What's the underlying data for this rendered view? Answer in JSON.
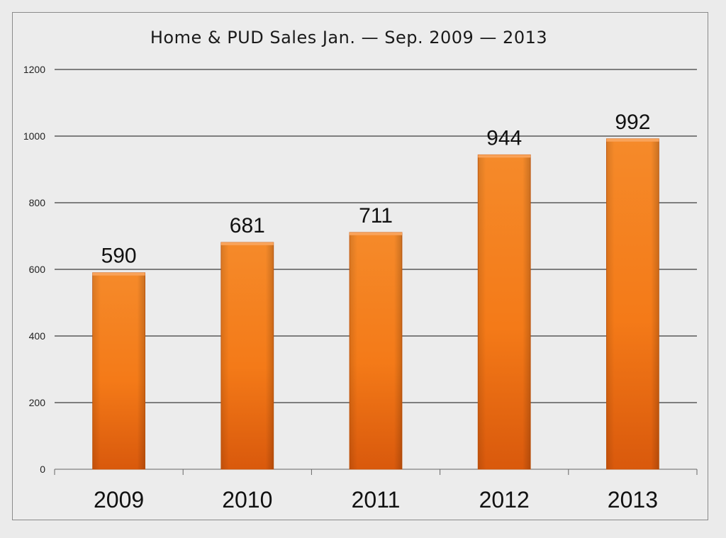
{
  "chart_data": {
    "type": "bar",
    "title": "Home & PUD Sales Jan. — Sep. 2009 — 2013",
    "categories": [
      "2009",
      "2010",
      "2011",
      "2012",
      "2013"
    ],
    "values": [
      590,
      681,
      711,
      944,
      992
    ],
    "data_labels": [
      "590",
      "681",
      "711",
      "944",
      "992"
    ],
    "xlabel": "",
    "ylabel": "",
    "ylim": [
      0,
      1200
    ],
    "yticks": [
      0,
      200,
      400,
      600,
      800,
      1000,
      1200
    ],
    "ytick_labels": [
      "0",
      "200",
      "400",
      "600",
      "800",
      "1000",
      "1200"
    ],
    "grid": true,
    "legend": "none",
    "bar_color": "#f07a1c"
  }
}
